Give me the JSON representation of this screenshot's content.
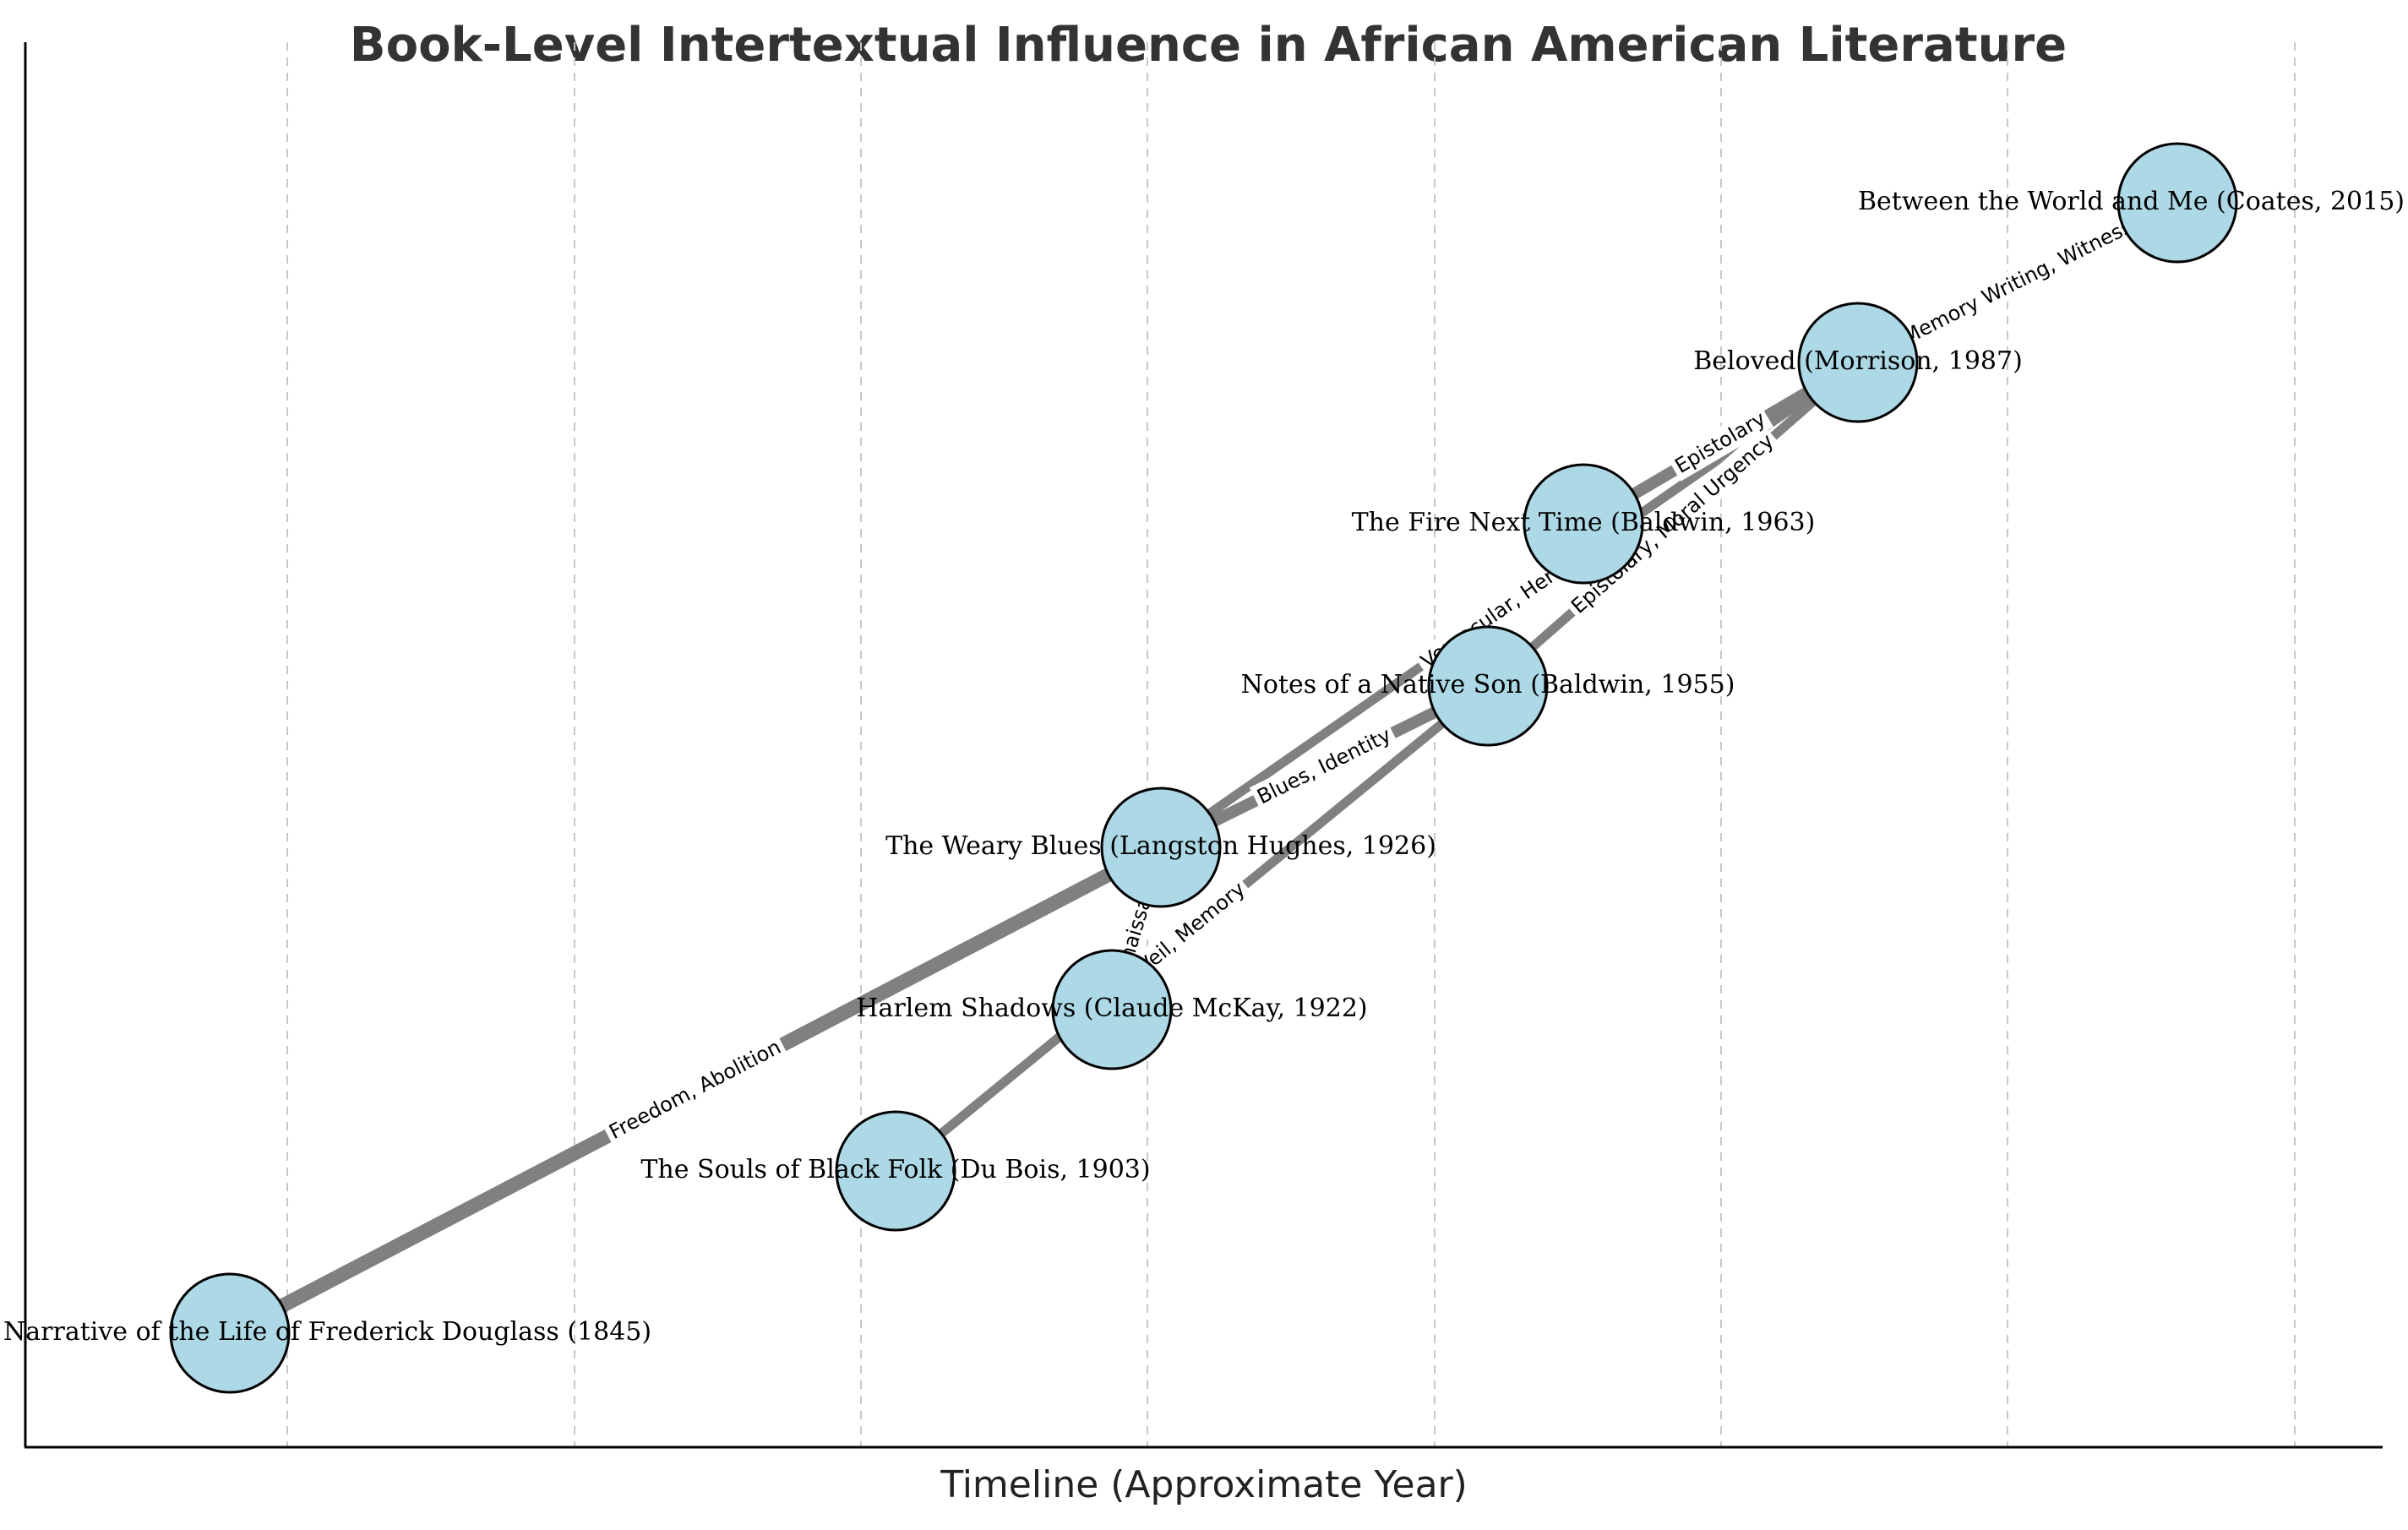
{
  "title": "Book-Level Intertextual Influence in African American Literature",
  "xlabel": "Timeline (Approximate Year)",
  "colors": {
    "node_fill": "#add8e6",
    "node_stroke": "#000000",
    "edge": "#808080",
    "title": "#333333"
  },
  "nodes": [
    {
      "id": "douglass",
      "label": "Narrative of the Life of Frederick Douglass (1845)"
    },
    {
      "id": "souls",
      "label": "The Souls of Black Folk (Du Bois, 1903)"
    },
    {
      "id": "harlem",
      "label": "Harlem Shadows (Claude McKay, 1922)"
    },
    {
      "id": "weary",
      "label": "The Weary Blues (Langston Hughes, 1926)"
    },
    {
      "id": "notes",
      "label": "Notes of a Native Son (Baldwin, 1955)"
    },
    {
      "id": "fire",
      "label": "The Fire Next Time (Baldwin, 1963)"
    },
    {
      "id": "beloved",
      "label": "Beloved (Morrison, 1987)"
    },
    {
      "id": "between",
      "label": "Between the World and Me (Coates, 2015)"
    }
  ],
  "edges": [
    {
      "source": "douglass",
      "target": "weary",
      "label": "Freedom, Abolition",
      "weight": 5
    },
    {
      "source": "souls",
      "target": "notes",
      "label": "Veil, Memory",
      "weight": 3
    },
    {
      "source": "harlem",
      "target": "weary",
      "label": "Harlem Renaissance, Lyrics",
      "weight": 3
    },
    {
      "source": "weary",
      "target": "beloved",
      "label": "Vernacular, Heritage",
      "weight": 3
    },
    {
      "source": "weary",
      "target": "notes",
      "label": "Blues, Identity",
      "weight": 4
    },
    {
      "source": "notes",
      "target": "beloved",
      "label": "Epistolary, Moral Urgency",
      "weight": 3
    },
    {
      "source": "fire",
      "target": "beloved",
      "label": "Epistolary",
      "weight": 4
    },
    {
      "source": "beloved",
      "target": "between",
      "label": "Memory Writing, Witness",
      "weight": 1
    }
  ]
}
